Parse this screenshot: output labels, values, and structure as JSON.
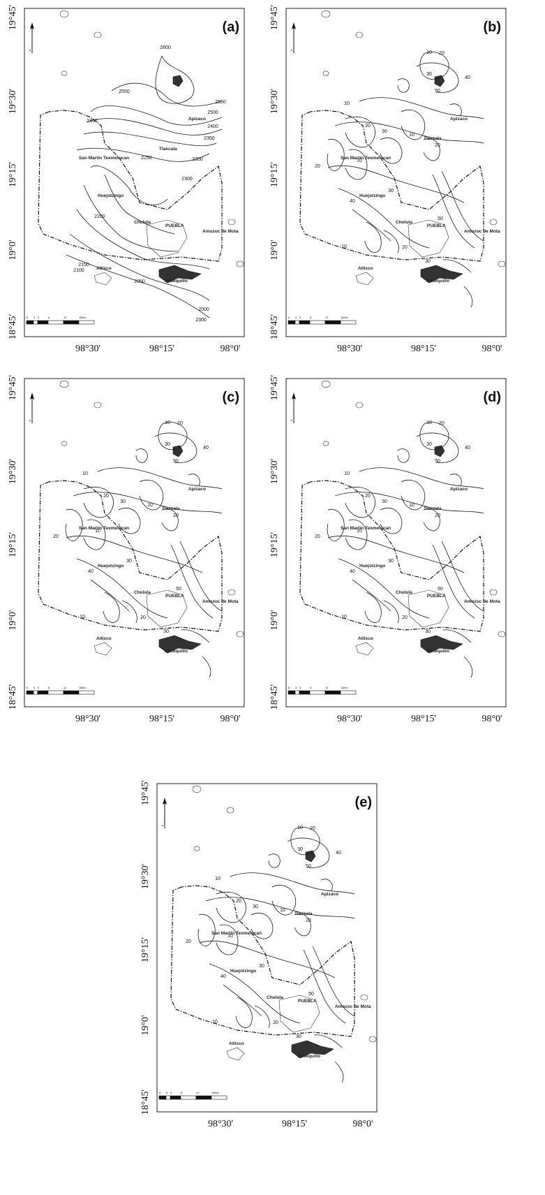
{
  "panels": [
    {
      "label": "(a)",
      "type": "elevation"
    },
    {
      "label": "(b)",
      "type": "thickness"
    },
    {
      "label": "(c)",
      "type": "thickness"
    },
    {
      "label": "(d)",
      "type": "thickness"
    },
    {
      "label": "(e)",
      "type": "thickness"
    }
  ],
  "latitudes": [
    "19°45'",
    "19°30'",
    "19°15'",
    "19°0'",
    "18°45'"
  ],
  "longitudes": [
    "98°30'",
    "98°15'",
    "98°0'"
  ],
  "north_label": "N",
  "scale_labels": [
    "6",
    "3",
    "0",
    "6",
    "12",
    "18Km."
  ],
  "towns": {
    "apizaco": "Apizaco",
    "tlaxcala": "Tlaxcala",
    "san_martin": "San Martín Texmelucan",
    "huejotzingo": "Huejotzingo",
    "cholula": "Cholula",
    "puebla": "PUEBLA",
    "amozoc": "Amozoc de Mota",
    "atlixco": "Atlixco",
    "valsequillo": "Valsequillo"
  },
  "contour_labels_a": [
    "2600",
    "2550",
    "2550",
    "2500",
    "2450",
    "2400",
    "2350",
    "2300",
    "2250",
    "2300",
    "2200",
    "2150",
    "2100",
    "2050",
    "2000",
    "2300"
  ],
  "contour_labels_thickness": [
    "10",
    "20",
    "30",
    "40",
    "50",
    "10",
    "20",
    "30",
    "10",
    "20",
    "10",
    "20",
    "30",
    "40",
    "50",
    "10",
    "20",
    "30"
  ]
}
